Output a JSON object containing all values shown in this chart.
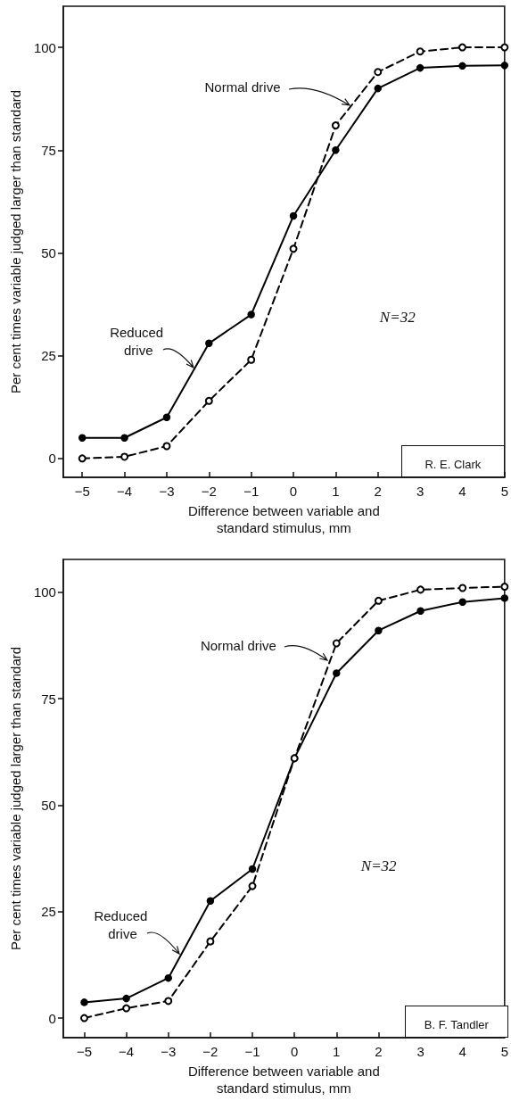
{
  "chart_data": [
    {
      "type": "line",
      "xlabel": "Difference between variable and\nstandard stimulus, mm",
      "ylabel": "Per cent times variable judged larger than standard",
      "x": [
        -5,
        -4,
        -3,
        -2,
        -1,
        0,
        1,
        2,
        3,
        4,
        5
      ],
      "xlim": [
        -5.45,
        5
      ],
      "xticks": [
        {
          "value": -5,
          "label": "−5"
        },
        {
          "value": -4,
          "label": "−4"
        },
        {
          "value": -3,
          "label": "−3"
        },
        {
          "value": -2,
          "label": "−2"
        },
        {
          "value": -1,
          "label": "−1"
        },
        0,
        1,
        2,
        3,
        4,
        5
      ],
      "ylim": [
        -4.6,
        110
      ],
      "yticks": [
        0,
        25,
        50,
        75,
        100
      ],
      "marker": "circle",
      "series": [
        {
          "color": "#000000",
          "line_style": "solid",
          "values": [
            5,
            5,
            10,
            28,
            35,
            59,
            75,
            90,
            95,
            95.5,
            95.6
          ]
        },
        {
          "color": "#000000",
          "line_style": "dashed",
          "values": [
            0,
            0.4,
            3,
            14,
            24,
            51,
            81,
            94,
            99,
            100,
            100
          ]
        }
      ],
      "annotations": [
        {
          "text": "Normal drive",
          "x": 1.33,
          "y": 86
        },
        {
          "text": "Reduced drive",
          "x": -2.36,
          "y": 22
        },
        "N=32",
        "R. E. Clark"
      ]
    },
    {
      "type": "line",
      "xlabel": "Difference between variable and\nstandard stimulus, mm",
      "ylabel": "Per cent times variable judged larger than standard",
      "x": [
        -5,
        -4,
        -3,
        -2,
        -1,
        0,
        1,
        2,
        3,
        4,
        5
      ],
      "xlim": [
        -5.5,
        5
      ],
      "xticks": [
        {
          "value": -5,
          "label": "−5"
        },
        {
          "value": -4,
          "label": "−4"
        },
        {
          "value": -3,
          "label": "−3"
        },
        {
          "value": -2,
          "label": "−2"
        },
        {
          "value": -1,
          "label": "−1"
        },
        0,
        1,
        2,
        3,
        4,
        5
      ],
      "ylim": [
        -4.6,
        107.7
      ],
      "yticks": [
        0,
        25,
        50,
        75,
        100
      ],
      "marker": "circle",
      "series": [
        {
          "color": "#000000",
          "line_style": "solid",
          "values": [
            3.7,
            4.6,
            9.4,
            27.5,
            35,
            61,
            81,
            91,
            95.6,
            97.7,
            98.6
          ]
        },
        {
          "color": "#000000",
          "line_style": "dashed",
          "values": [
            0,
            2.3,
            4,
            18,
            31,
            61,
            88,
            98,
            100.6,
            101,
            101.3
          ]
        }
      ],
      "annotations": [
        {
          "text": "Normal drive",
          "x": 0.79,
          "y": 84
        },
        {
          "text": "Reduced drive",
          "x": -2.73,
          "y": 15
        },
        "N=32",
        "B. F. Tandler"
      ]
    }
  ]
}
